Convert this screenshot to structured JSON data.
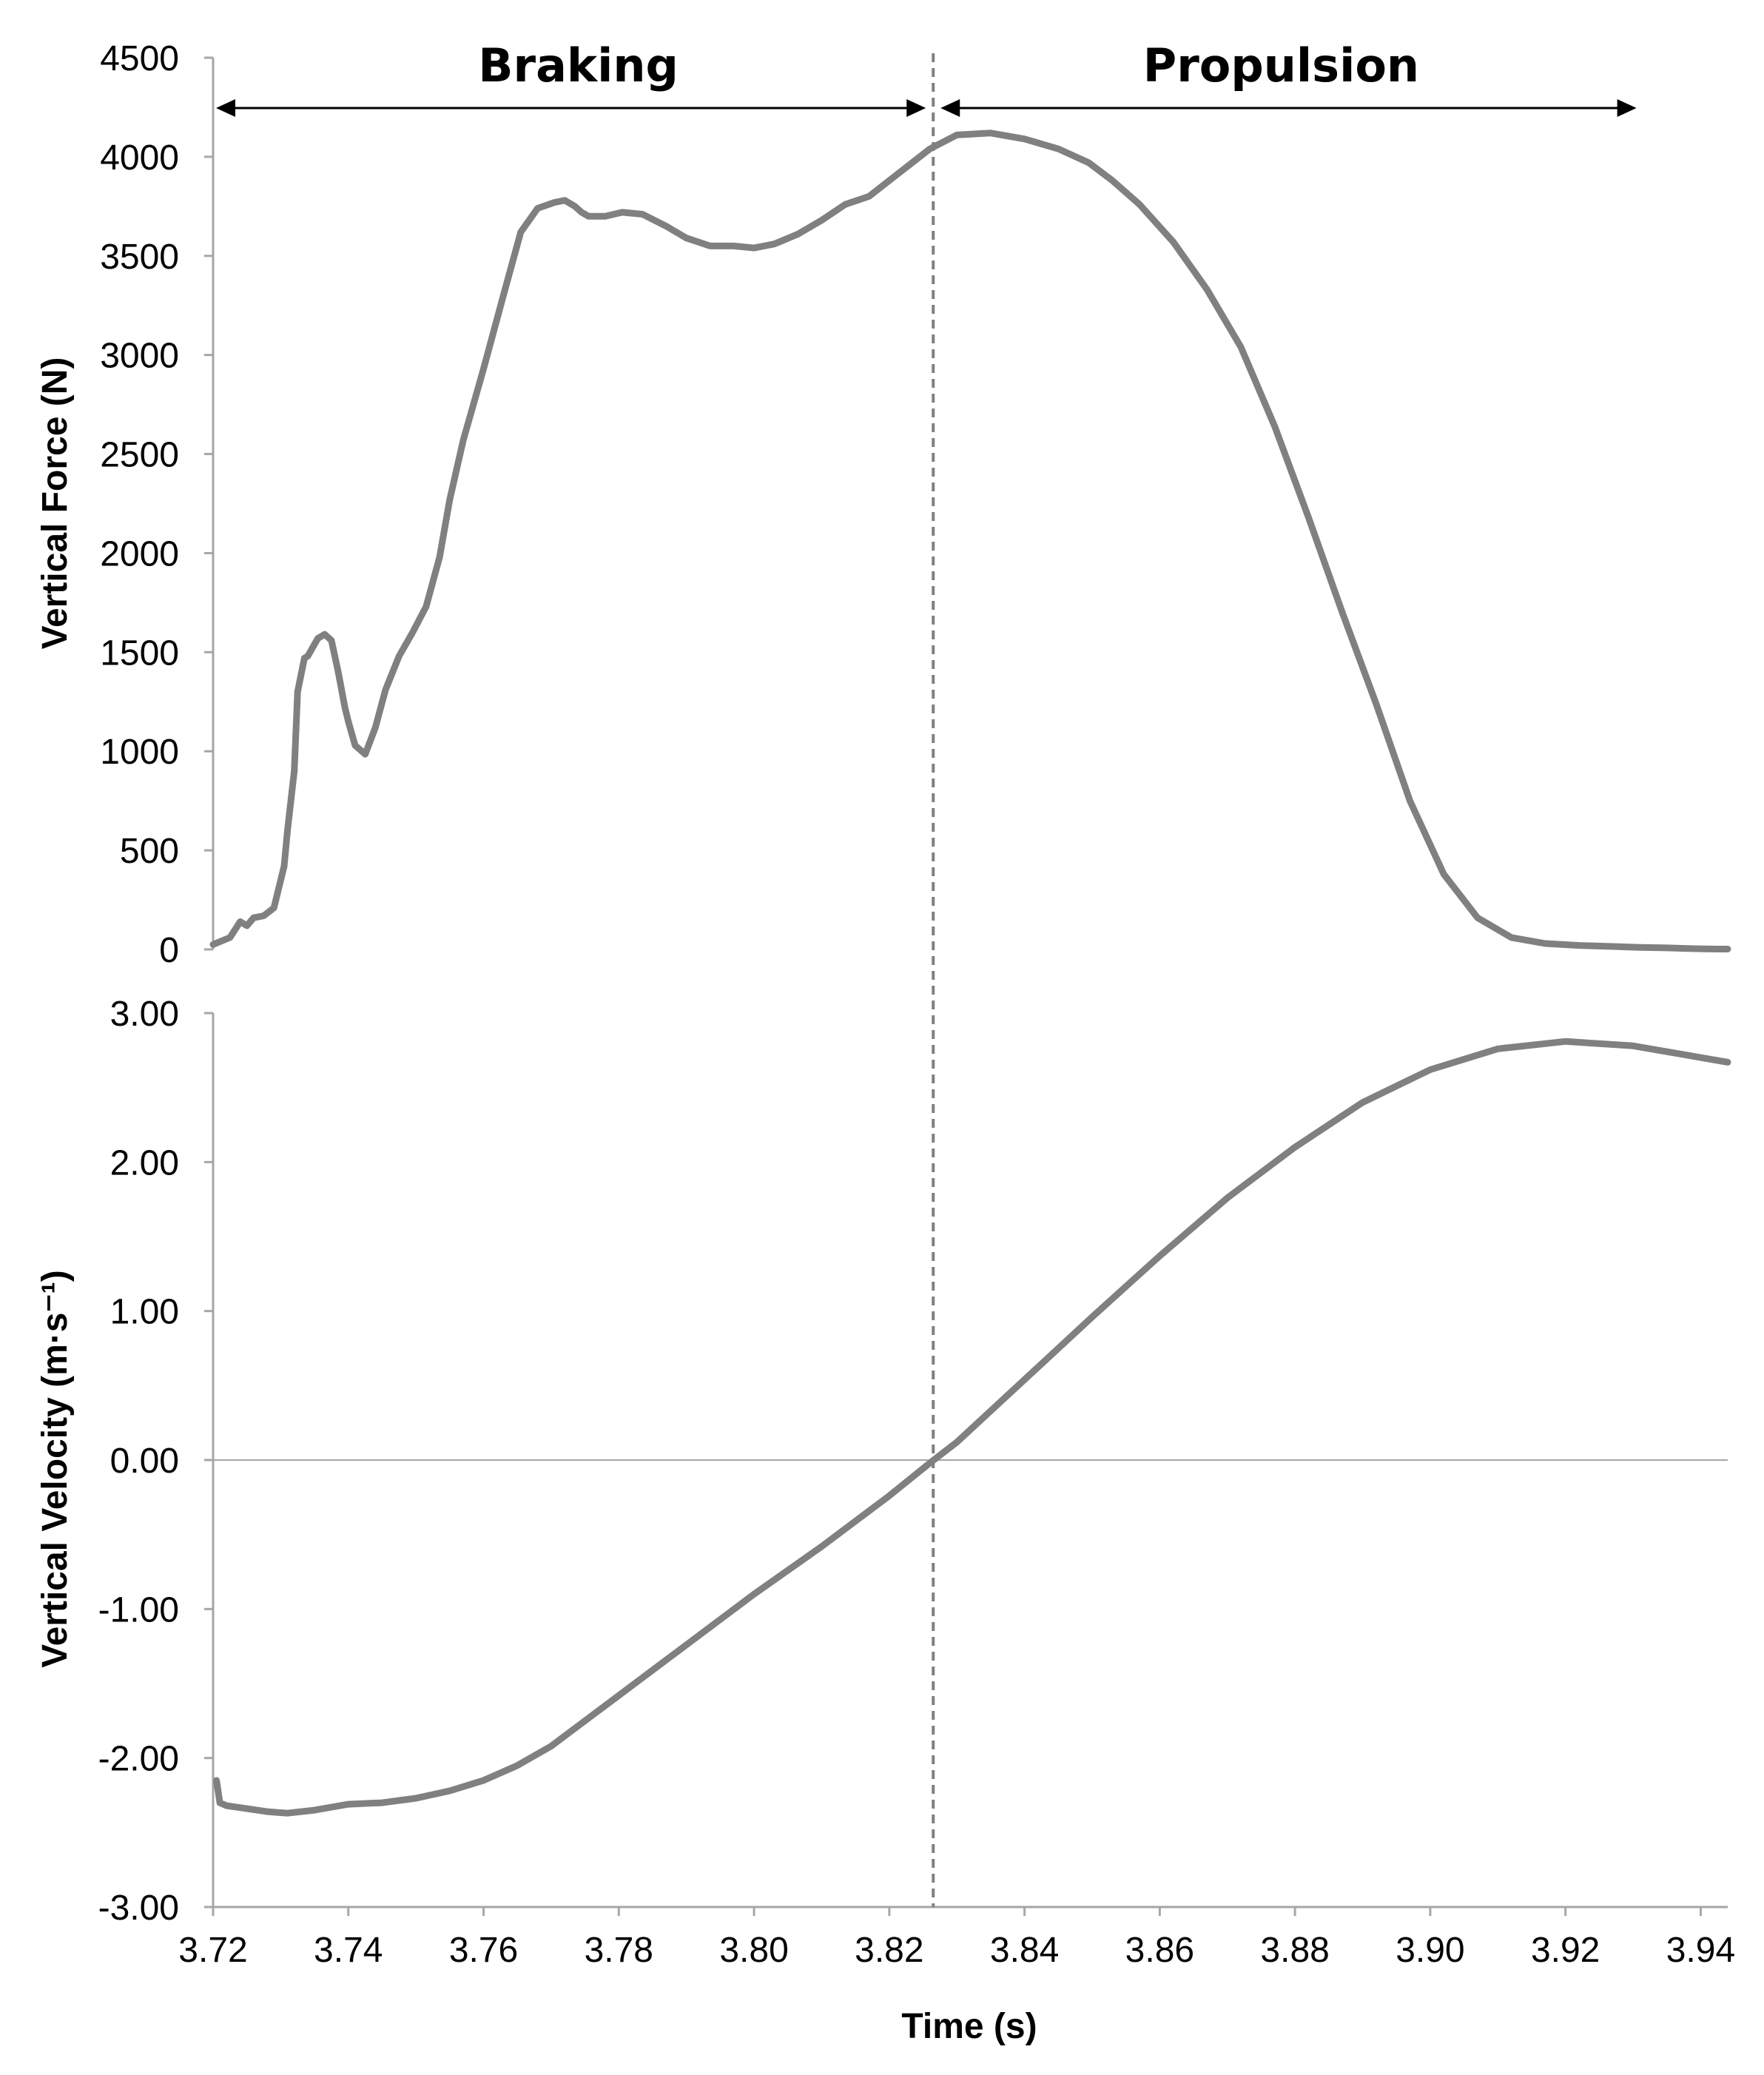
{
  "chart_data": [
    {
      "type": "line",
      "ylabel": "Vertical Force (N)",
      "xlim": [
        3.72,
        3.944
      ],
      "ylim": [
        0,
        4500
      ],
      "yticks": [
        "4500",
        "4000",
        "3500",
        "3000",
        "2500",
        "2000",
        "1500",
        "1000",
        "500",
        "0"
      ],
      "series": [
        {
          "color": "#808080",
          "x": [
            3.72,
            3.7225,
            3.724,
            3.725,
            3.726,
            3.7275,
            3.729,
            3.7305,
            3.731,
            3.732,
            3.7325,
            3.7335,
            3.734,
            3.7355,
            3.7365,
            3.7375,
            3.7385,
            3.7395,
            3.74,
            3.741,
            3.7425,
            3.744,
            3.7455,
            3.7475,
            3.7495,
            3.7515,
            3.7535,
            3.755,
            3.757,
            3.76,
            3.763,
            3.7655,
            3.768,
            3.7705,
            3.772,
            3.7735,
            3.7745,
            3.7755,
            3.7765,
            3.778,
            3.7805,
            3.7835,
            3.787,
            3.79,
            3.7935,
            3.797,
            3.8,
            3.803,
            3.8065,
            3.81,
            3.8135,
            3.817,
            3.82,
            3.823,
            3.826,
            3.83,
            3.835,
            3.84,
            3.845,
            3.8495,
            3.853,
            3.857,
            3.862,
            3.867,
            3.872,
            3.877,
            3.882,
            3.887,
            3.892,
            3.897,
            3.902,
            3.907,
            3.912,
            3.917,
            3.922,
            3.927,
            3.931,
            3.935,
            3.938,
            3.9405,
            3.9425,
            3.944
          ],
          "y": [
            25,
            60,
            140,
            120,
            160,
            170,
            210,
            420,
            600,
            900,
            1300,
            1470,
            1480,
            1570,
            1590,
            1560,
            1400,
            1220,
            1150,
            1030,
            985,
            1120,
            1310,
            1480,
            1600,
            1730,
            1980,
            2270,
            2570,
            2930,
            3310,
            3620,
            3740,
            3770,
            3780,
            3750,
            3720,
            3700,
            3700,
            3700,
            3720,
            3710,
            3650,
            3590,
            3550,
            3550,
            3540,
            3560,
            3610,
            3680,
            3760,
            3800,
            3880,
            3960,
            4040,
            4110,
            4120,
            4090,
            4040,
            3970,
            3880,
            3760,
            3570,
            3330,
            3040,
            2640,
            2180,
            1700,
            1240,
            750,
            380,
            160,
            60,
            30,
            20,
            15,
            10,
            8,
            5,
            3,
            2,
            2
          ]
        }
      ]
    },
    {
      "type": "line",
      "ylabel": "Vertical Velocity (m·s⁻¹)",
      "xlabel": "Time (s)",
      "xlim": [
        3.72,
        3.944
      ],
      "ylim": [
        -3,
        3
      ],
      "yticks": [
        "3.00",
        "2.00",
        "1.00",
        "0.00",
        "-1.00",
        "-2.00",
        "-3.00"
      ],
      "xticks": [
        "3.72",
        "3.74",
        "3.76",
        "3.78",
        "3.80",
        "3.82",
        "3.84",
        "3.86",
        "3.88",
        "3.90",
        "3.92",
        "3.94"
      ],
      "series": [
        {
          "color": "#808080",
          "x": [
            3.7205,
            3.721,
            3.722,
            3.725,
            3.728,
            3.731,
            3.735,
            3.74,
            3.745,
            3.75,
            3.755,
            3.76,
            3.765,
            3.77,
            3.775,
            3.78,
            3.79,
            3.8,
            3.81,
            3.82,
            3.826,
            3.83,
            3.84,
            3.85,
            3.86,
            3.87,
            3.88,
            3.89,
            3.9,
            3.91,
            3.92,
            3.93,
            3.944
          ],
          "y": [
            -2.15,
            -2.3,
            -2.32,
            -2.34,
            -2.36,
            -2.37,
            -2.35,
            -2.31,
            -2.3,
            -2.27,
            -2.22,
            -2.15,
            -2.05,
            -1.92,
            -1.75,
            -1.58,
            -1.24,
            -0.9,
            -0.58,
            -0.24,
            -0.02,
            0.12,
            0.54,
            0.96,
            1.37,
            1.76,
            2.1,
            2.4,
            2.62,
            2.76,
            2.81,
            2.78,
            2.67
          ]
        }
      ]
    }
  ],
  "annotations": {
    "braking": "Braking",
    "propulsion": "Propulsion",
    "divider_x": 3.8265,
    "braking_range": [
      3.72,
      3.8265
    ],
    "propulsion_range": [
      3.8265,
      3.9305
    ]
  }
}
